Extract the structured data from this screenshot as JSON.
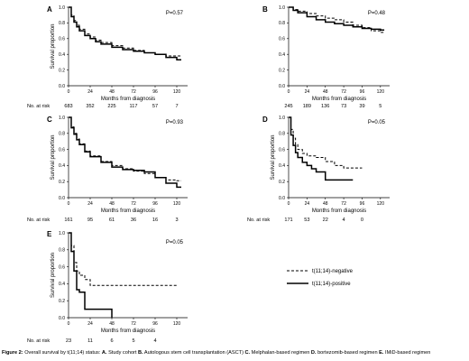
{
  "caption": {
    "label": "Figure 2:",
    "text": "Overall survival by t(11;14) status:",
    "parts": [
      {
        "letter": "A.",
        "text": "Study cohort"
      },
      {
        "letter": "B.",
        "text": "Autologous stem cell transplantation (ASCT)"
      },
      {
        "letter": "C.",
        "text": "Melphalan-based regimen"
      },
      {
        "letter": "D.",
        "text": "bortezomib-based regimen"
      },
      {
        "letter": "E.",
        "text": "IMiD-based regimen"
      }
    ]
  },
  "legend": {
    "items": [
      {
        "label": "t(11;14)-negative",
        "style": "dashed"
      },
      {
        "label": "t(11;14)-positive",
        "style": "solid"
      }
    ]
  },
  "chart_data": [
    {
      "type": "line",
      "panel": "A",
      "pvalue": "P=0.57",
      "xlabel": "Months from diagnosis",
      "ylabel": "Survival proportion",
      "xlim": [
        0,
        132
      ],
      "ylim": [
        0,
        1
      ],
      "xticks": [
        0,
        24,
        48,
        72,
        96,
        120
      ],
      "yticks": [
        0,
        0.2,
        0.4,
        0.6,
        0.8,
        1.0
      ],
      "at_risk_label": "No. at risk",
      "at_risk": [
        "683",
        "352",
        "225",
        "117",
        "57",
        "7"
      ],
      "series": [
        {
          "style": "dashed",
          "x": [
            0,
            3,
            6,
            9,
            12,
            18,
            24,
            30,
            36,
            48,
            60,
            72,
            84,
            96,
            108,
            120,
            125
          ],
          "y": [
            1.0,
            0.9,
            0.83,
            0.77,
            0.72,
            0.66,
            0.62,
            0.58,
            0.55,
            0.51,
            0.48,
            0.45,
            0.42,
            0.4,
            0.38,
            0.38,
            0.38
          ]
        },
        {
          "style": "solid",
          "x": [
            0,
            3,
            6,
            9,
            12,
            18,
            24,
            30,
            36,
            48,
            60,
            72,
            84,
            96,
            108,
            120,
            125
          ],
          "y": [
            1.0,
            0.88,
            0.81,
            0.75,
            0.7,
            0.64,
            0.6,
            0.56,
            0.53,
            0.49,
            0.46,
            0.44,
            0.42,
            0.4,
            0.36,
            0.33,
            0.33
          ]
        }
      ]
    },
    {
      "type": "line",
      "panel": "B",
      "pvalue": "P=0.48",
      "xlabel": "Months from diagnosis",
      "ylabel": "",
      "xlim": [
        0,
        132
      ],
      "ylim": [
        0,
        1
      ],
      "xticks": [
        0,
        24,
        48,
        72,
        96,
        120
      ],
      "yticks": [
        0,
        0.2,
        0.4,
        0.6,
        0.8,
        1.0
      ],
      "at_risk_label": "",
      "at_risk": [
        "245",
        "189",
        "136",
        "73",
        "39",
        "5"
      ],
      "series": [
        {
          "style": "dashed",
          "x": [
            0,
            6,
            12,
            24,
            36,
            48,
            60,
            72,
            84,
            96,
            108,
            120,
            125
          ],
          "y": [
            1.0,
            0.97,
            0.95,
            0.92,
            0.89,
            0.86,
            0.84,
            0.81,
            0.77,
            0.74,
            0.7,
            0.68,
            0.68
          ]
        },
        {
          "style": "solid",
          "x": [
            0,
            6,
            12,
            24,
            36,
            48,
            60,
            72,
            84,
            96,
            108,
            120,
            125
          ],
          "y": [
            1.0,
            0.96,
            0.93,
            0.88,
            0.84,
            0.81,
            0.79,
            0.77,
            0.75,
            0.73,
            0.72,
            0.71,
            0.71
          ]
        }
      ]
    },
    {
      "type": "line",
      "panel": "C",
      "pvalue": "P=0.93",
      "xlabel": "Months from diagnosis",
      "ylabel": "Survival proportion",
      "xlim": [
        0,
        132
      ],
      "ylim": [
        0,
        1
      ],
      "xticks": [
        0,
        24,
        48,
        72,
        96,
        120
      ],
      "yticks": [
        0,
        0.2,
        0.4,
        0.6,
        0.8,
        1.0
      ],
      "at_risk_label": "No. at risk",
      "at_risk": [
        "161",
        "95",
        "61",
        "36",
        "16",
        "3"
      ],
      "series": [
        {
          "style": "dashed",
          "x": [
            0,
            3,
            6,
            9,
            12,
            18,
            24,
            36,
            48,
            60,
            72,
            84,
            96,
            108,
            120,
            125
          ],
          "y": [
            1.0,
            0.88,
            0.8,
            0.73,
            0.67,
            0.58,
            0.52,
            0.45,
            0.4,
            0.36,
            0.33,
            0.3,
            0.25,
            0.22,
            0.21,
            0.21
          ]
        },
        {
          "style": "solid",
          "x": [
            0,
            3,
            6,
            9,
            12,
            18,
            24,
            36,
            48,
            60,
            72,
            84,
            96,
            108,
            120,
            125
          ],
          "y": [
            1.0,
            0.87,
            0.79,
            0.72,
            0.66,
            0.57,
            0.51,
            0.44,
            0.38,
            0.35,
            0.34,
            0.32,
            0.25,
            0.18,
            0.13,
            0.13
          ]
        }
      ]
    },
    {
      "type": "line",
      "panel": "D",
      "pvalue": "P=0.05",
      "xlabel": "Months from diagnosis",
      "ylabel": "Survival proportion",
      "xlim": [
        0,
        132
      ],
      "ylim": [
        0,
        1
      ],
      "xticks": [
        0,
        24,
        48,
        72,
        96,
        120
      ],
      "yticks": [
        0,
        0.2,
        0.4,
        0.6,
        0.8,
        1.0
      ],
      "at_risk_label": "No. at risk",
      "at_risk": [
        "171",
        "53",
        "22",
        "4",
        "0",
        ""
      ],
      "series": [
        {
          "style": "dashed",
          "x": [
            0,
            3,
            6,
            9,
            12,
            18,
            24,
            36,
            48,
            60,
            72,
            96
          ],
          "y": [
            1.0,
            0.85,
            0.74,
            0.66,
            0.6,
            0.55,
            0.52,
            0.5,
            0.45,
            0.4,
            0.37,
            0.37
          ]
        },
        {
          "style": "solid",
          "x": [
            0,
            3,
            6,
            9,
            12,
            18,
            24,
            30,
            36,
            48,
            60,
            72,
            84
          ],
          "y": [
            1.0,
            0.78,
            0.65,
            0.56,
            0.5,
            0.44,
            0.4,
            0.36,
            0.32,
            0.22,
            0.22,
            0.22,
            0.22
          ]
        }
      ]
    },
    {
      "type": "line",
      "panel": "E",
      "pvalue": "P=0.05",
      "xlabel": "Months from diagnosis",
      "ylabel": "Survival proportion",
      "xlim": [
        0,
        132
      ],
      "ylim": [
        0,
        1
      ],
      "xticks": [
        0,
        24,
        48,
        72,
        96,
        120
      ],
      "yticks": [
        0,
        0.2,
        0.4,
        0.6,
        0.8,
        1.0
      ],
      "at_risk_label": "No. at risk",
      "at_risk": [
        "23",
        "11",
        "6",
        "5",
        "4",
        ""
      ],
      "series": [
        {
          "style": "dashed",
          "x": [
            0,
            3,
            6,
            9,
            12,
            18,
            24,
            48,
            72,
            96,
            120
          ],
          "y": [
            1.0,
            0.85,
            0.65,
            0.55,
            0.5,
            0.45,
            0.38,
            0.38,
            0.38,
            0.38,
            0.38
          ]
        },
        {
          "style": "solid",
          "x": [
            0,
            3,
            6,
            9,
            12,
            18,
            24,
            36,
            48
          ],
          "y": [
            1.0,
            0.78,
            0.55,
            0.33,
            0.3,
            0.1,
            0.1,
            0.1,
            0.0
          ]
        }
      ]
    }
  ]
}
